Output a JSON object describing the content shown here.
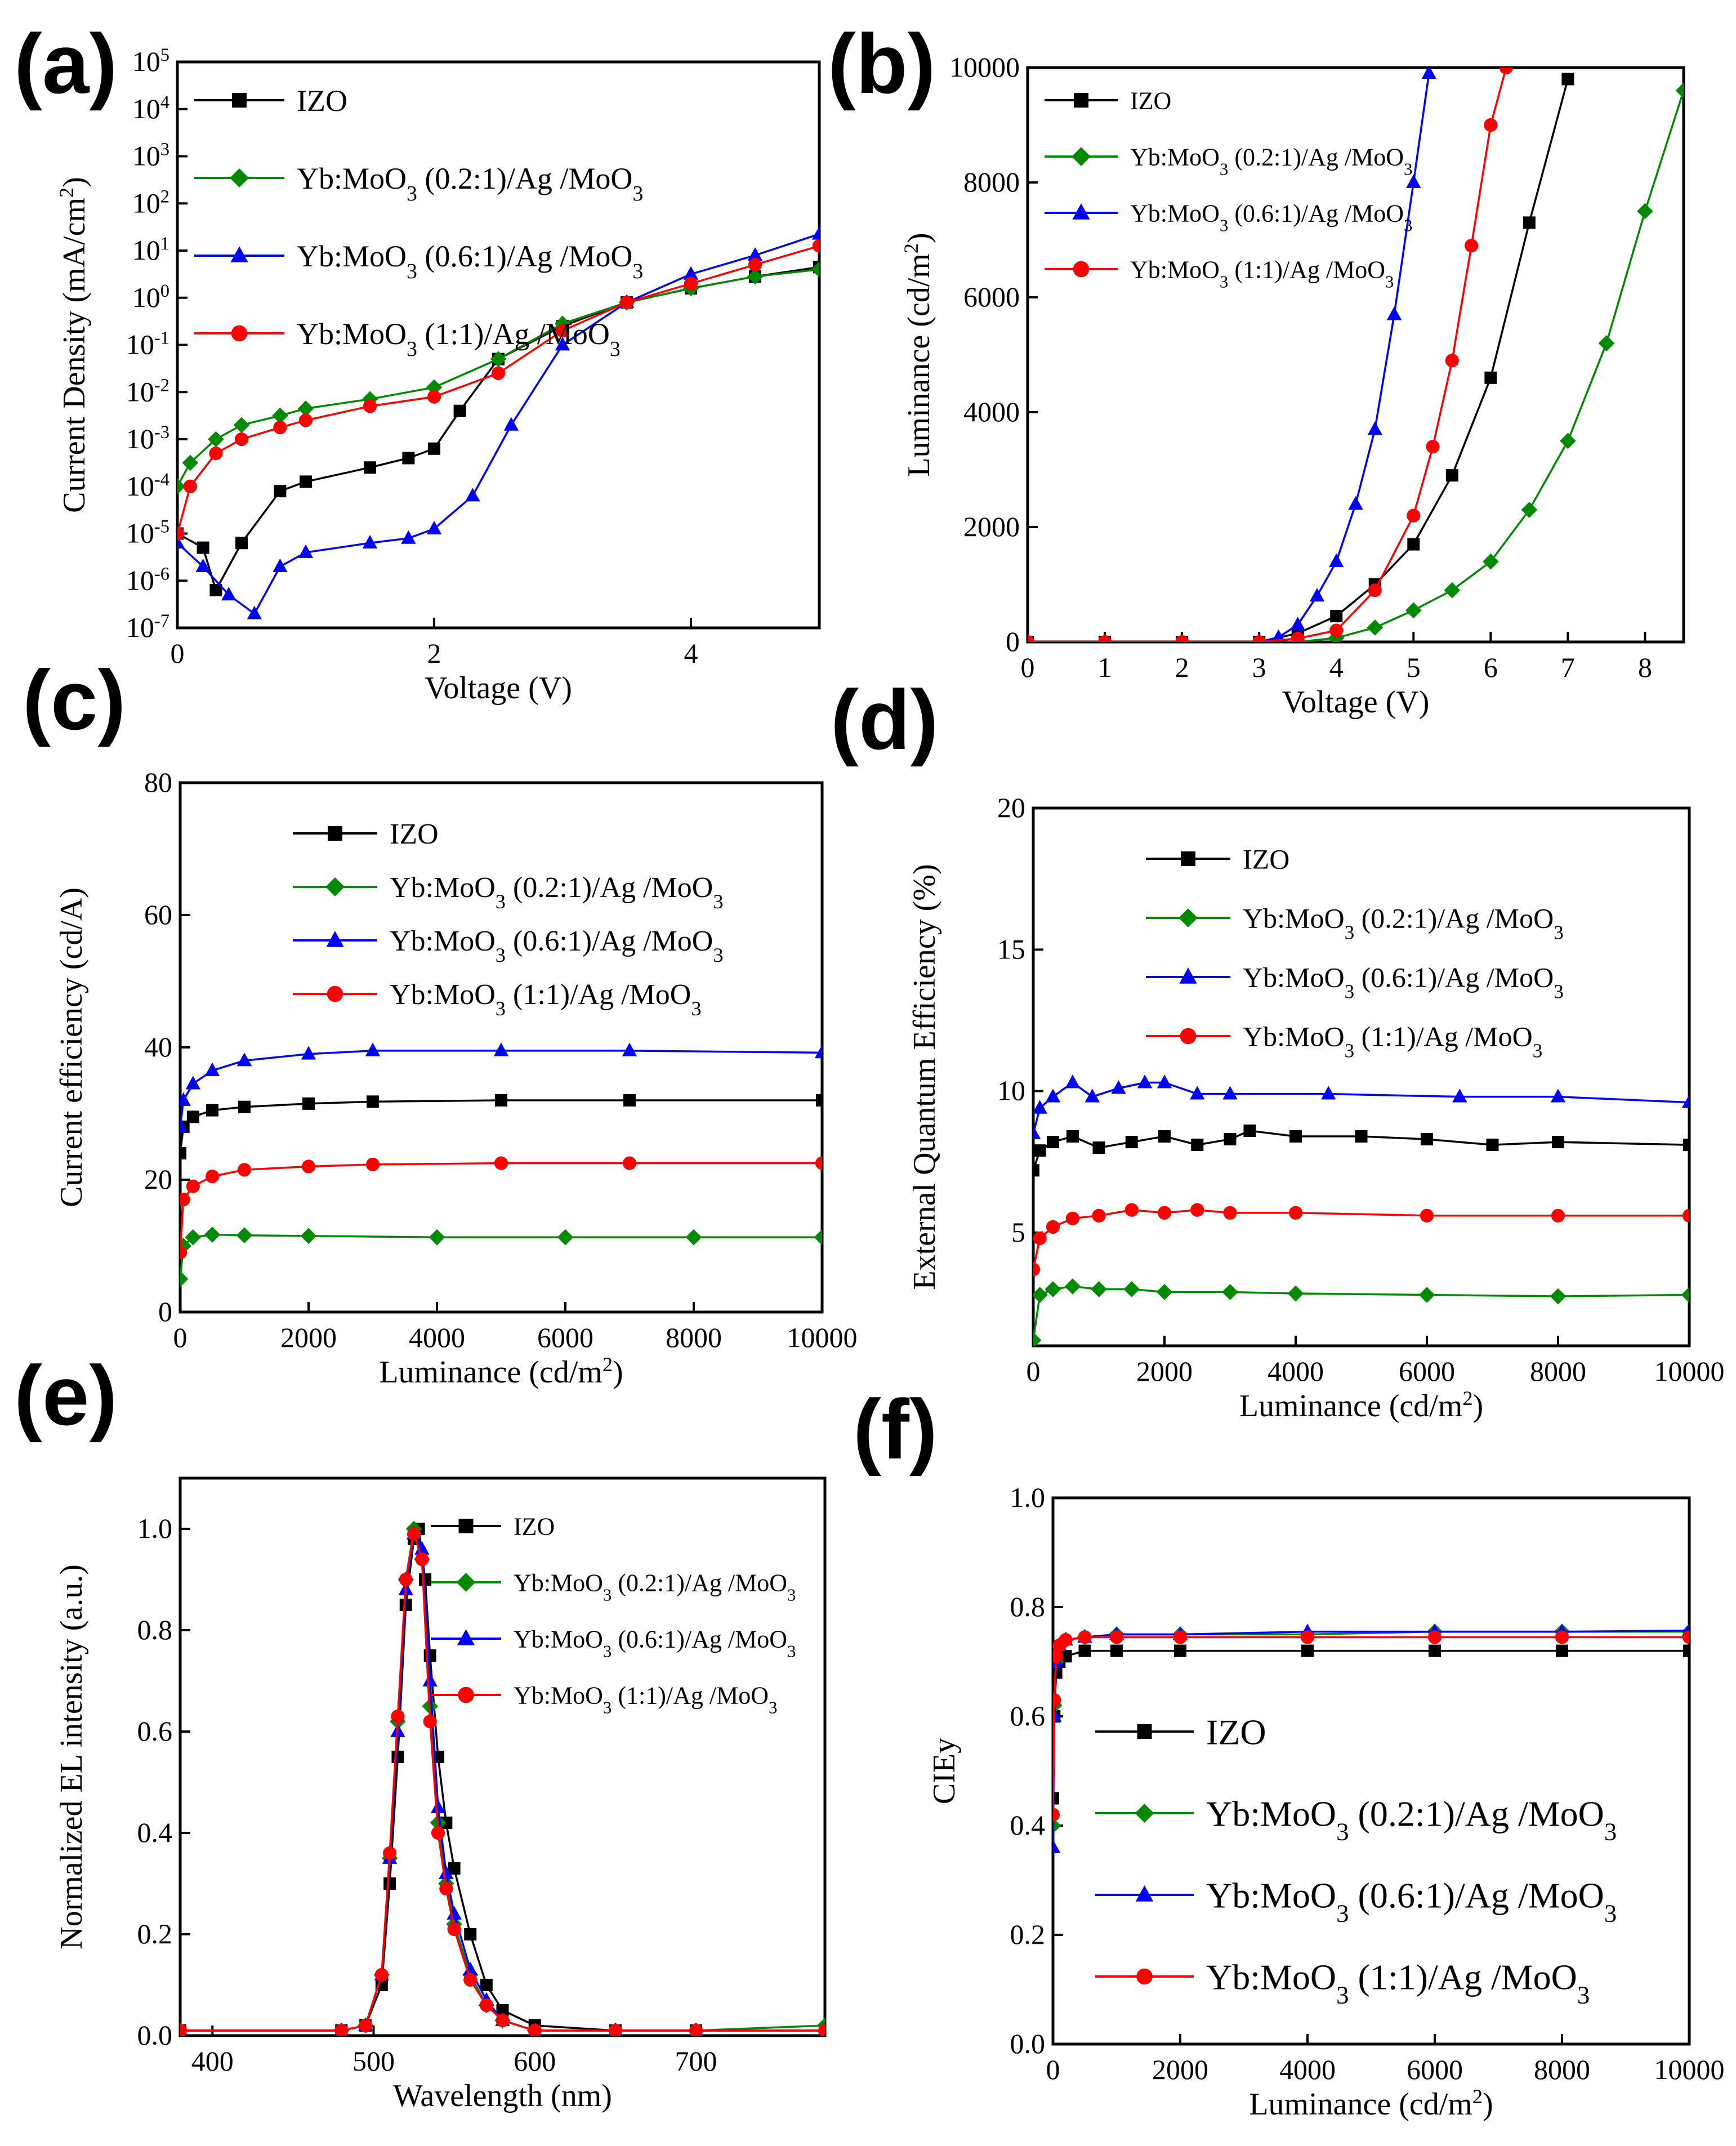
{
  "colors": {
    "IZO": "#000000",
    "Yb:MoO3 (0.2:1)/Ag /MoO3": "#008a00",
    "Yb:MoO3 (0.6:1)/Ag /MoO3": "#0000ff",
    "Yb:MoO3 (1:1)/Ag /MoO3": "#ff0000"
  },
  "legend_entries": [
    {
      "key": "IZO",
      "label": "IZO",
      "marker": "square"
    },
    {
      "key": "Yb:MoO3 (0.2:1)/Ag /MoO3",
      "label": "Yb:MoO3 (0.2:1)/Ag /MoO3",
      "marker": "diamond"
    },
    {
      "key": "Yb:MoO3 (0.6:1)/Ag /MoO3",
      "label": "Yb:MoO3 (0.6:1)/Ag /MoO3",
      "marker": "triangle"
    },
    {
      "key": "Yb:MoO3 (1:1)/Ag /MoO3",
      "label": "Yb:MoO3 (1:1)/Ag /MoO3",
      "marker": "circle"
    }
  ],
  "chart_data": [
    {
      "panel": "(a)",
      "type": "line",
      "xlabel": "Voltage (V)",
      "ylabel": "Current Density (mA/cm2)",
      "yscale": "log",
      "xlim": [
        0,
        5
      ],
      "ylim": [
        -7,
        5
      ],
      "xticks": [
        "0",
        "2",
        "4"
      ],
      "xtick_values": [
        0,
        2,
        4
      ],
      "yticks": [
        "10-7",
        "10-6",
        "10-5",
        "10-4",
        "10-3",
        "10-2",
        "10-1",
        "100",
        "101",
        "102",
        "103",
        "104",
        "105"
      ],
      "ytick_values": [
        -7,
        -6,
        -5,
        -4,
        -3,
        -2,
        -1,
        0,
        1,
        2,
        3,
        4,
        5
      ],
      "legend_position": "top-left",
      "series": [
        {
          "name": "IZO",
          "x": [
            0,
            0.2,
            0.3,
            0.5,
            0.8,
            1.0,
            1.5,
            1.8,
            2.0,
            2.2,
            2.5,
            3.0,
            3.5,
            4.0,
            4.5,
            5.0
          ],
          "values": [
            -5,
            -5.3,
            -6.2,
            -5.2,
            -4.1,
            -3.9,
            -3.6,
            -3.4,
            -3.2,
            -2.4,
            -1.3,
            -0.6,
            -0.1,
            0.2,
            0.45,
            0.65
          ]
        },
        {
          "name": "Yb:MoO3 (0.2:1)/Ag /MoO3",
          "x": [
            0,
            0.1,
            0.3,
            0.5,
            0.8,
            1.0,
            1.5,
            2.0,
            2.5,
            3.0,
            3.5,
            4.0,
            4.5,
            5.0
          ],
          "values": [
            -4,
            -3.5,
            -3.0,
            -2.7,
            -2.5,
            -2.35,
            -2.15,
            -1.9,
            -1.3,
            -0.55,
            -0.1,
            0.2,
            0.45,
            0.6
          ]
        },
        {
          "name": "Yb:MoO3 (0.6:1)/Ag /MoO3",
          "x": [
            0,
            0.2,
            0.4,
            0.6,
            0.8,
            1.0,
            1.5,
            1.8,
            2.0,
            2.3,
            2.6,
            3.0,
            3.5,
            4.0,
            4.5,
            5.0
          ],
          "values": [
            -5.2,
            -5.7,
            -6.3,
            -6.7,
            -5.7,
            -5.4,
            -5.2,
            -5.1,
            -4.9,
            -4.2,
            -2.7,
            -1.0,
            -0.1,
            0.5,
            0.9,
            1.35
          ]
        },
        {
          "name": "Yb:MoO3 (1:1)/Ag /MoO3",
          "x": [
            0,
            0.1,
            0.3,
            0.5,
            0.8,
            1.0,
            1.5,
            2.0,
            2.5,
            3.0,
            3.5,
            4.0,
            4.5,
            5.0
          ],
          "values": [
            -5,
            -4.0,
            -3.3,
            -3.0,
            -2.75,
            -2.6,
            -2.3,
            -2.1,
            -1.6,
            -0.7,
            -0.1,
            0.3,
            0.7,
            1.1
          ]
        }
      ]
    },
    {
      "panel": "(b)",
      "type": "line",
      "xlabel": "Voltage (V)",
      "ylabel": "Luminance (cd/m2)",
      "xlim": [
        0,
        8.5
      ],
      "ylim": [
        0,
        10000
      ],
      "xticks": [
        "0",
        "1",
        "2",
        "3",
        "4",
        "5",
        "6",
        "7",
        "8"
      ],
      "xtick_values": [
        0,
        1,
        2,
        3,
        4,
        5,
        6,
        7,
        8
      ],
      "yticks": [
        "0",
        "2000",
        "4000",
        "6000",
        "8000",
        "10000"
      ],
      "ytick_values": [
        0,
        2000,
        4000,
        6000,
        8000,
        10000
      ],
      "legend_position": "top-left",
      "series": [
        {
          "name": "IZO",
          "x": [
            0,
            1,
            2,
            3.0,
            3.5,
            4.0,
            4.5,
            5.0,
            5.5,
            6.0,
            6.5,
            7.0
          ],
          "values": [
            0,
            0,
            0,
            0,
            150,
            450,
            1000,
            1700,
            2900,
            4600,
            7300,
            9800
          ]
        },
        {
          "name": "Yb:MoO3 (0.2:1)/Ag /MoO3",
          "x": [
            0,
            1,
            2,
            3.0,
            3.5,
            4.0,
            4.5,
            5.0,
            5.5,
            6.0,
            6.5,
            7.0,
            7.5,
            8.0,
            8.5
          ],
          "values": [
            0,
            0,
            0,
            0,
            0,
            70,
            250,
            550,
            900,
            1400,
            2300,
            3500,
            5200,
            7500,
            9600
          ]
        },
        {
          "name": "Yb:MoO3 (0.6:1)/Ag /MoO3",
          "x": [
            0,
            1,
            2,
            3.0,
            3.25,
            3.5,
            3.75,
            4.0,
            4.25,
            4.5,
            4.75,
            5.0,
            5.2
          ],
          "values": [
            0,
            0,
            0,
            0,
            80,
            300,
            800,
            1400,
            2400,
            3700,
            5700,
            8000,
            9900
          ]
        },
        {
          "name": "Yb:MoO3 (1:1)/Ag /MoO3",
          "x": [
            0,
            1,
            2,
            3.0,
            3.5,
            4.0,
            4.5,
            5.0,
            5.25,
            5.5,
            5.75,
            6.0,
            6.2
          ],
          "values": [
            0,
            0,
            0,
            0,
            60,
            200,
            900,
            2200,
            3400,
            4900,
            6900,
            9000,
            10000
          ]
        }
      ]
    },
    {
      "panel": "(c)",
      "type": "line",
      "xlabel": "Luminance (cd/m2)",
      "ylabel": "Current efficiency (cd/A)",
      "xlim": [
        0,
        10000
      ],
      "ylim": [
        0,
        80
      ],
      "xticks": [
        "0",
        "2000",
        "4000",
        "6000",
        "8000",
        "10000"
      ],
      "xtick_values": [
        0,
        2000,
        4000,
        6000,
        8000,
        10000
      ],
      "yticks": [
        "0",
        "20",
        "40",
        "60",
        "80"
      ],
      "ytick_values": [
        0,
        20,
        40,
        60,
        80
      ],
      "legend_position": "top-right",
      "series": [
        {
          "name": "IZO",
          "x": [
            0,
            50,
            200,
            500,
            1000,
            2000,
            3000,
            5000,
            7000,
            10000
          ],
          "values": [
            24,
            28,
            29.5,
            30.5,
            31,
            31.5,
            31.8,
            32,
            32,
            32
          ]
        },
        {
          "name": "Yb:MoO3 (0.2:1)/Ag /MoO3",
          "x": [
            0,
            50,
            200,
            500,
            1000,
            2000,
            4000,
            6000,
            8000,
            10000
          ],
          "values": [
            5,
            10,
            11.3,
            11.7,
            11.6,
            11.5,
            11.3,
            11.3,
            11.3,
            11.3
          ]
        },
        {
          "name": "Yb:MoO3 (0.6:1)/Ag /MoO3",
          "x": [
            0,
            50,
            200,
            500,
            1000,
            2000,
            3000,
            5000,
            7000,
            10000
          ],
          "values": [
            28,
            32,
            34.5,
            36.5,
            38,
            39,
            39.5,
            39.5,
            39.5,
            39.2
          ]
        },
        {
          "name": "Yb:MoO3 (1:1)/Ag /MoO3",
          "x": [
            0,
            50,
            200,
            500,
            1000,
            2000,
            3000,
            5000,
            7000,
            10000
          ],
          "values": [
            9,
            17,
            19,
            20.5,
            21.5,
            22,
            22.3,
            22.5,
            22.5,
            22.5
          ]
        }
      ]
    },
    {
      "panel": "(d)",
      "type": "line",
      "xlabel": "Luminance (cd/m2)",
      "ylabel": "External Quantum Efficiency (%)",
      "xlim": [
        0,
        10000
      ],
      "ylim": [
        1,
        20
      ],
      "xticks": [
        "0",
        "2000",
        "4000",
        "6000",
        "8000",
        "10000"
      ],
      "xtick_values": [
        0,
        2000,
        4000,
        6000,
        8000,
        10000
      ],
      "yticks": [
        "5",
        "10",
        "15",
        "20"
      ],
      "ytick_values": [
        5,
        10,
        15,
        20
      ],
      "legend_position": "top-right",
      "series": [
        {
          "name": "IZO",
          "x": [
            0,
            100,
            300,
            600,
            1000,
            1500,
            2000,
            2500,
            3000,
            3300,
            4000,
            5000,
            6000,
            7000,
            8000,
            10000
          ],
          "values": [
            7.2,
            7.9,
            8.2,
            8.4,
            8.0,
            8.2,
            8.4,
            8.1,
            8.3,
            8.6,
            8.4,
            8.4,
            8.3,
            8.1,
            8.2,
            8.1
          ]
        },
        {
          "name": "Yb:MoO3 (0.2:1)/Ag /MoO3",
          "x": [
            0,
            100,
            300,
            600,
            1000,
            1500,
            2000,
            3000,
            4000,
            6000,
            8000,
            10000
          ],
          "values": [
            1.2,
            2.8,
            3.0,
            3.1,
            3.0,
            3.0,
            2.9,
            2.9,
            2.85,
            2.8,
            2.75,
            2.8
          ]
        },
        {
          "name": "Yb:MoO3 (0.6:1)/Ag /MoO3",
          "x": [
            0,
            100,
            300,
            600,
            900,
            1300,
            1700,
            2000,
            2500,
            3000,
            4500,
            6500,
            8000,
            10000
          ],
          "values": [
            8.5,
            9.4,
            9.8,
            10.3,
            9.8,
            10.1,
            10.3,
            10.3,
            9.9,
            9.9,
            9.9,
            9.8,
            9.8,
            9.6
          ]
        },
        {
          "name": "Yb:MoO3 (1:1)/Ag /MoO3",
          "x": [
            0,
            100,
            300,
            600,
            1000,
            1500,
            2000,
            2500,
            3000,
            4000,
            6000,
            8000,
            10000
          ],
          "values": [
            3.7,
            4.8,
            5.2,
            5.5,
            5.6,
            5.8,
            5.7,
            5.8,
            5.7,
            5.7,
            5.6,
            5.6,
            5.6
          ]
        }
      ]
    },
    {
      "panel": "(e)",
      "type": "line",
      "xlabel": "Wavelength (nm)",
      "ylabel": "Normalized EL intensity (a.u.)",
      "xlim": [
        380,
        780
      ],
      "ylim": [
        0,
        1.1
      ],
      "xticks": [
        "400",
        "500",
        "600",
        "700"
      ],
      "xtick_values": [
        400,
        500,
        600,
        700
      ],
      "yticks": [
        "0.0",
        "0.2",
        "0.4",
        "0.6",
        "0.8",
        "1.0"
      ],
      "ytick_values": [
        0,
        0.2,
        0.4,
        0.6,
        0.8,
        1.0
      ],
      "legend_position": "top-right",
      "series": [
        {
          "name": "IZO",
          "x": [
            380,
            480,
            495,
            505,
            510,
            515,
            520,
            525,
            528,
            532,
            535,
            540,
            545,
            550,
            560,
            570,
            580,
            600,
            650,
            700,
            780
          ],
          "values": [
            0.01,
            0.01,
            0.02,
            0.1,
            0.3,
            0.55,
            0.85,
            0.98,
            1.0,
            0.9,
            0.75,
            0.55,
            0.42,
            0.33,
            0.2,
            0.1,
            0.05,
            0.02,
            0.01,
            0.01,
            0.01
          ]
        },
        {
          "name": "Yb:MoO3 (0.2:1)/Ag /MoO3",
          "x": [
            380,
            480,
            495,
            505,
            510,
            515,
            520,
            525,
            530,
            535,
            540,
            545,
            550,
            560,
            570,
            580,
            600,
            650,
            700,
            780
          ],
          "values": [
            0.01,
            0.01,
            0.02,
            0.12,
            0.35,
            0.62,
            0.9,
            1.0,
            0.94,
            0.65,
            0.42,
            0.3,
            0.22,
            0.12,
            0.06,
            0.03,
            0.01,
            0.01,
            0.01,
            0.02
          ]
        },
        {
          "name": "Yb:MoO3 (0.6:1)/Ag /MoO3",
          "x": [
            380,
            480,
            495,
            505,
            510,
            515,
            520,
            525,
            530,
            535,
            540,
            545,
            550,
            560,
            570,
            580,
            600,
            650,
            700,
            780
          ],
          "values": [
            0.01,
            0.01,
            0.02,
            0.12,
            0.35,
            0.6,
            0.88,
            0.99,
            0.96,
            0.7,
            0.45,
            0.32,
            0.24,
            0.13,
            0.07,
            0.03,
            0.01,
            0.01,
            0.01,
            0.01
          ]
        },
        {
          "name": "Yb:MoO3 (1:1)/Ag /MoO3",
          "x": [
            380,
            480,
            495,
            505,
            510,
            515,
            520,
            525,
            530,
            535,
            540,
            545,
            550,
            560,
            570,
            580,
            600,
            650,
            700,
            780
          ],
          "values": [
            0.01,
            0.01,
            0.02,
            0.12,
            0.36,
            0.63,
            0.9,
            0.99,
            0.94,
            0.62,
            0.4,
            0.29,
            0.21,
            0.11,
            0.06,
            0.03,
            0.01,
            0.01,
            0.01,
            0.01
          ]
        }
      ]
    },
    {
      "panel": "(f)",
      "type": "line",
      "xlabel": "Luminance (cd/m2)",
      "ylabel": "CIEy",
      "xlim": [
        0,
        10000
      ],
      "ylim": [
        0,
        1.0
      ],
      "xticks": [
        "0",
        "2000",
        "4000",
        "6000",
        "8000",
        "10000"
      ],
      "xtick_values": [
        0,
        2000,
        4000,
        6000,
        8000,
        10000
      ],
      "yticks": [
        "0.0",
        "0.2",
        "0.4",
        "0.6",
        "0.8",
        "1.0"
      ],
      "ytick_values": [
        0,
        0.2,
        0.4,
        0.6,
        0.8,
        1.0
      ],
      "legend_position": "center-right",
      "series": [
        {
          "name": "IZO",
          "x": [
            0,
            20,
            50,
            100,
            200,
            500,
            1000,
            2000,
            4000,
            6000,
            8000,
            10000
          ],
          "values": [
            0.45,
            0.6,
            0.68,
            0.7,
            0.71,
            0.72,
            0.72,
            0.72,
            0.72,
            0.72,
            0.72,
            0.72
          ]
        },
        {
          "name": "Yb:MoO3 (0.2:1)/Ag /MoO3",
          "x": [
            0,
            20,
            50,
            100,
            200,
            500,
            1000,
            2000,
            4000,
            6000,
            8000,
            10000
          ],
          "values": [
            0.4,
            0.62,
            0.7,
            0.73,
            0.74,
            0.745,
            0.75,
            0.75,
            0.75,
            0.755,
            0.755,
            0.755
          ]
        },
        {
          "name": "Yb:MoO3 (0.6:1)/Ag /MoO3",
          "x": [
            0,
            20,
            50,
            100,
            200,
            500,
            1000,
            2000,
            4000,
            6000,
            8000,
            10000
          ],
          "values": [
            0.36,
            0.6,
            0.7,
            0.73,
            0.74,
            0.745,
            0.75,
            0.75,
            0.755,
            0.755,
            0.755,
            0.757
          ]
        },
        {
          "name": "Yb:MoO3 (1:1)/Ag /MoO3",
          "x": [
            0,
            20,
            50,
            100,
            200,
            500,
            1000,
            2000,
            4000,
            6000,
            8000,
            10000
          ],
          "values": [
            0.42,
            0.63,
            0.71,
            0.73,
            0.74,
            0.745,
            0.745,
            0.745,
            0.745,
            0.745,
            0.745,
            0.745
          ]
        }
      ]
    }
  ]
}
